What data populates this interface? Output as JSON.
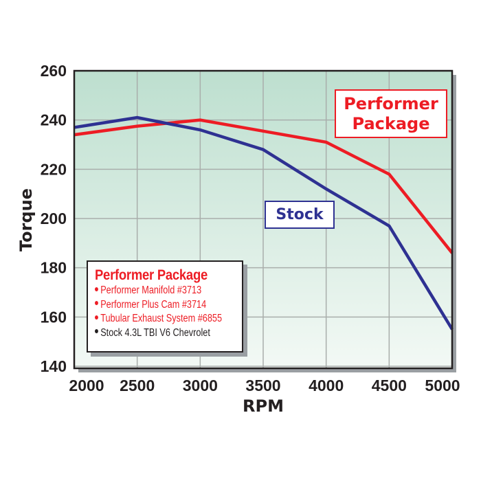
{
  "chart_data": {
    "type": "line",
    "title": "",
    "xlabel": "RPM",
    "ylabel": "Torque",
    "x": [
      2000,
      2500,
      3000,
      3500,
      4000,
      4500,
      5000
    ],
    "x_tick_labels": [
      "2000",
      "2500",
      "3000",
      "3500",
      "4000",
      "4500",
      "5000"
    ],
    "y_tick_labels": [
      "140",
      "160",
      "180",
      "200",
      "220",
      "240",
      "260"
    ],
    "y_ticks": [
      140,
      160,
      180,
      200,
      220,
      240,
      260
    ],
    "xlim": [
      2000,
      5000
    ],
    "ylim": [
      140,
      260
    ],
    "grid": true,
    "series": [
      {
        "name": "Performer Package",
        "color": "#ed1c24",
        "values": [
          234,
          237.5,
          240,
          235.5,
          231,
          218,
          186
        ]
      },
      {
        "name": "Stock",
        "color": "#2e3192",
        "values": [
          237,
          241,
          236,
          228,
          212,
          197,
          155
        ]
      }
    ],
    "annotations": [
      {
        "text": "Performer Package",
        "color": "#ed1c24"
      },
      {
        "text": "Stock",
        "color": "#2e3192"
      }
    ],
    "legend": {
      "title": "Performer Package",
      "items": [
        {
          "text": "Performer Manifold #3713",
          "color": "#ed1c24"
        },
        {
          "text": "Performer Plus Cam #3714",
          "color": "#ed1c24"
        },
        {
          "text": "Tubular Exhaust System #6855",
          "color": "#ed1c24"
        },
        {
          "text": "Stock 4.3L TBI V6 Chevrolet",
          "color": "#231f20"
        }
      ],
      "position": "lower-left inside plot"
    }
  },
  "colors": {
    "plot_bg_top": "#bddfcf",
    "plot_bg_bottom": "#f3f9f5",
    "grid": "#a9aeab",
    "frame": "#231f20",
    "shadow": "#9a9fa3"
  },
  "labels": {
    "callout_performer_line1": "Performer",
    "callout_performer_line2": "Package",
    "callout_stock": "Stock"
  }
}
